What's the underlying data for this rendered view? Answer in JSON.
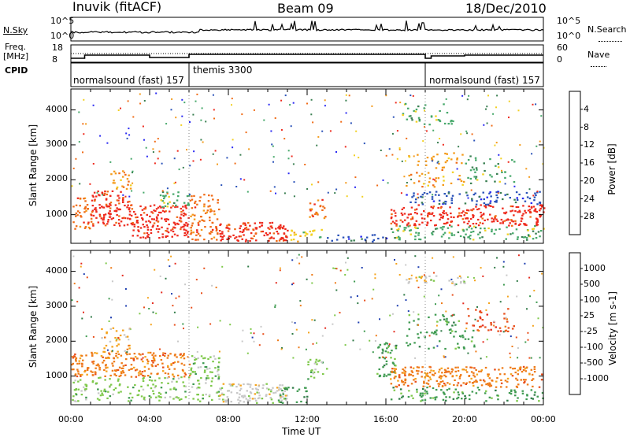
{
  "header": {
    "station": "Inuvik (fitACF)",
    "beam": "Beam 09",
    "date": "18/Dec/2010"
  },
  "top_panels": {
    "nsky_label": "N.Sky",
    "nsky_ticks": [
      "10^5",
      "10^0"
    ],
    "nsearch_label": "N.Search",
    "nsearch_ticks": [
      "10^5",
      "10^0"
    ],
    "freq_label": "Freq.",
    "freq_unit": "[MHz]",
    "freq_ticks": [
      "18",
      "8"
    ],
    "nave_label": "Nave",
    "nave_ticks": [
      "60",
      "0"
    ],
    "cpid_label": "CPID",
    "modes": [
      {
        "name": "normalsound (fast) 157",
        "start_h": 0,
        "end_h": 6
      },
      {
        "name": "themis 3300",
        "start_h": 6,
        "end_h": 18
      },
      {
        "name": "normalsound (fast) 157",
        "start_h": 18,
        "end_h": 24
      }
    ]
  },
  "chart_data": [
    {
      "type": "heatmap",
      "title": "Power",
      "ylabel": "Slant Range [km]",
      "xlabel": "",
      "ylim": [
        180,
        4600
      ],
      "xlim_hours": [
        0,
        24
      ],
      "y_ticks": [
        "1000",
        "2000",
        "3000",
        "4000"
      ],
      "x_ticks": [
        "00:00",
        "04:00",
        "08:00",
        "12:00",
        "16:00",
        "20:00",
        "00:00"
      ],
      "colorbar": {
        "label": "Power [dB]",
        "tick_labels": [
          "4",
          "8",
          "12",
          "16",
          "20",
          "24",
          "28"
        ],
        "colors": [
          "#2a2af2",
          "#2a52b8",
          "#3a7f52",
          "#46a86a",
          "#f2d021",
          "#f49a19",
          "#f06b16",
          "#ee2a1d"
        ]
      }
    },
    {
      "type": "heatmap",
      "title": "Velocity",
      "ylabel": "Slant Range [km]",
      "xlabel": "Time UT",
      "ylim": [
        180,
        4600
      ],
      "xlim_hours": [
        0,
        24
      ],
      "y_ticks": [
        "1000",
        "2000",
        "3000",
        "4000"
      ],
      "x_ticks": [
        "00:00",
        "04:00",
        "08:00",
        "12:00",
        "16:00",
        "20:00",
        "00:00"
      ],
      "colorbar": {
        "label": "Velocity",
        "unit_label": "[m s-1]",
        "tick_labels": [
          "1000",
          "500",
          "100",
          "25",
          "-25",
          "-100",
          "-500",
          "-1000"
        ],
        "colors": [
          "#1f3fb0",
          "#2f7a46",
          "#3e9a50",
          "#7ec84a",
          "#c8c8c8",
          "#f5a31c",
          "#ee7a17",
          "#e84e1a",
          "#e42b1f"
        ]
      }
    }
  ],
  "regions": [
    {
      "panel": 0,
      "h0": 0.0,
      "h1": 1.0,
      "r0": 500,
      "r1": 1500,
      "c": 6,
      "d": 0.5
    },
    {
      "panel": 0,
      "h0": 1.0,
      "h1": 3.0,
      "r0": 700,
      "r1": 1700,
      "c": 7,
      "d": 0.75
    },
    {
      "panel": 0,
      "h0": 2.0,
      "h1": 3.0,
      "r0": 1700,
      "r1": 2400,
      "c": 5,
      "d": 0.4
    },
    {
      "panel": 0,
      "h0": 3.0,
      "h1": 6.0,
      "r0": 350,
      "r1": 1300,
      "c": 7,
      "d": 0.7
    },
    {
      "panel": 0,
      "h0": 4.5,
      "h1": 6.0,
      "r0": 1200,
      "r1": 1700,
      "c": 3,
      "d": 0.5
    },
    {
      "panel": 0,
      "h0": 6.0,
      "h1": 7.5,
      "r0": 300,
      "r1": 1600,
      "c": 6,
      "d": 0.55
    },
    {
      "panel": 0,
      "h0": 7.5,
      "h1": 11.0,
      "r0": 250,
      "r1": 800,
      "c": 7,
      "d": 0.8
    },
    {
      "panel": 0,
      "h0": 11.0,
      "h1": 12.8,
      "r0": 250,
      "r1": 600,
      "c": 4,
      "d": 0.5
    },
    {
      "panel": 0,
      "h0": 12.0,
      "h1": 13.0,
      "r0": 900,
      "r1": 1500,
      "c": 6,
      "d": 0.5
    },
    {
      "panel": 0,
      "h0": 13.0,
      "h1": 16.0,
      "r0": 250,
      "r1": 450,
      "c": 1,
      "d": 0.45
    },
    {
      "panel": 0,
      "h0": 16.2,
      "h1": 24.0,
      "r0": 700,
      "r1": 1300,
      "c": 7,
      "d": 0.65
    },
    {
      "panel": 0,
      "h0": 16.2,
      "h1": 24.0,
      "r0": 300,
      "r1": 700,
      "c": 3,
      "d": 0.45
    },
    {
      "panel": 0,
      "h0": 17.0,
      "h1": 23.8,
      "r0": 1300,
      "r1": 1700,
      "c": 1,
      "d": 0.45
    },
    {
      "panel": 0,
      "h0": 17.0,
      "h1": 20.0,
      "r0": 1800,
      "r1": 2800,
      "c": 5,
      "d": 0.25
    },
    {
      "panel": 0,
      "h0": 20.0,
      "h1": 22.5,
      "r0": 1900,
      "r1": 2700,
      "c": 3,
      "d": 0.25
    },
    {
      "panel": 0,
      "h0": 16.8,
      "h1": 19.5,
      "r0": 3600,
      "r1": 4200,
      "c": 3,
      "d": 0.3
    },
    {
      "panel": 1,
      "h0": 0.0,
      "h1": 6.0,
      "r0": 1000,
      "r1": 1700,
      "c": 6,
      "d": 0.65
    },
    {
      "panel": 1,
      "h0": 1.5,
      "h1": 3.0,
      "r0": 1700,
      "r1": 2400,
      "c": 5,
      "d": 0.4
    },
    {
      "panel": 1,
      "h0": 0.0,
      "h1": 6.0,
      "r0": 300,
      "r1": 1000,
      "c": 3,
      "d": 0.4
    },
    {
      "panel": 1,
      "h0": 6.0,
      "h1": 7.5,
      "r0": 300,
      "r1": 1600,
      "c": 3,
      "d": 0.5
    },
    {
      "panel": 1,
      "h0": 7.3,
      "h1": 11.0,
      "r0": 250,
      "r1": 800,
      "c": 4,
      "d": 0.75
    },
    {
      "panel": 1,
      "h0": 10.5,
      "h1": 12.0,
      "r0": 250,
      "r1": 700,
      "c": 2,
      "d": 0.5
    },
    {
      "panel": 1,
      "h0": 12.0,
      "h1": 13.0,
      "r0": 900,
      "r1": 1500,
      "c": 3,
      "d": 0.5
    },
    {
      "panel": 1,
      "h0": 15.5,
      "h1": 16.5,
      "r0": 1000,
      "r1": 2000,
      "c": 2,
      "d": 0.6
    },
    {
      "panel": 1,
      "h0": 16.2,
      "h1": 24.0,
      "r0": 700,
      "r1": 1300,
      "c": 6,
      "d": 0.65
    },
    {
      "panel": 1,
      "h0": 16.2,
      "h1": 24.0,
      "r0": 300,
      "r1": 700,
      "c": 2,
      "d": 0.4
    },
    {
      "panel": 1,
      "h0": 17.0,
      "h1": 20.5,
      "r0": 1800,
      "r1": 2800,
      "c": 2,
      "d": 0.25
    },
    {
      "panel": 1,
      "h0": 20.0,
      "h1": 22.5,
      "r0": 2300,
      "r1": 3000,
      "c": 7,
      "d": 0.3
    },
    {
      "panel": 1,
      "h0": 17.0,
      "h1": 20.0,
      "r0": 3600,
      "r1": 3900,
      "c": 4,
      "d": 0.5
    }
  ]
}
